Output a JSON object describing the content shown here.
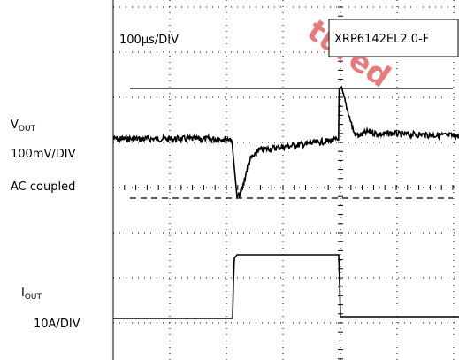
{
  "header": {
    "timebase": "100µs/DIV",
    "part": "XRP6142EL2.0-F"
  },
  "watermark": "tured",
  "channels": [
    {
      "name": "V",
      "sub": "OUT",
      "scale": "100mV/DIV",
      "coupling": "AC coupled"
    },
    {
      "name": "I",
      "sub": "OUT",
      "scale": "10A/DIV"
    }
  ]
}
